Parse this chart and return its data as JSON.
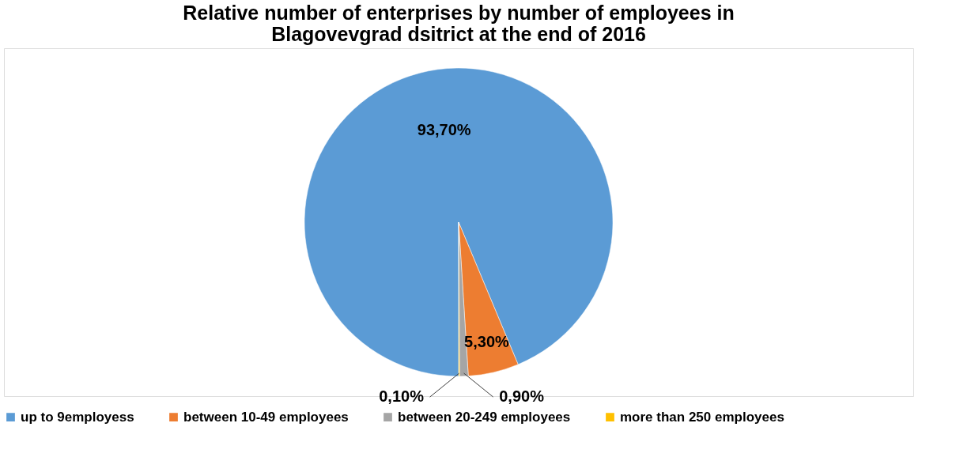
{
  "chart_data": {
    "type": "pie",
    "title": [
      "Relative number of enterprises by number of employees in",
      "Blagovevgrad dsitrict at the end of 2016"
    ],
    "categories": [
      "up to 9employess",
      "between 10-49 employees",
      "between 20-249 employees",
      "more than 250 employees"
    ],
    "values": [
      93.7,
      5.3,
      0.9,
      0.1
    ],
    "colors": [
      "#5b9bd5",
      "#ed7d31",
      "#a5a5a5",
      "#ffc000"
    ],
    "value_labels": [
      "93,70%",
      "5,30%",
      "0,90%",
      "0,10%"
    ],
    "legend": "bottom"
  }
}
